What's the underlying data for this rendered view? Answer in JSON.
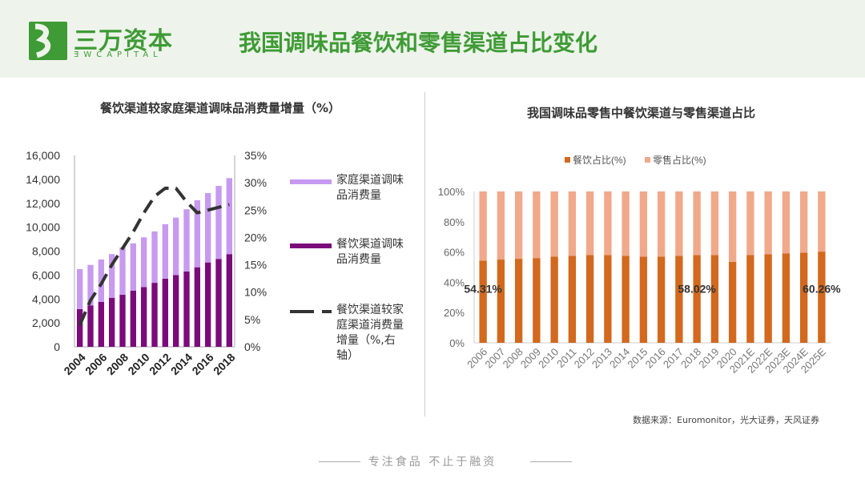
{
  "header": {
    "logo_cn": "三万资本",
    "logo_en": "ƎWCAPITAL",
    "title": "我国调味品餐饮和零售渠道占比变化",
    "brand_color": "#3f9b35"
  },
  "chart_data": [
    {
      "type": "bar",
      "stacked": true,
      "title": "餐饮渠道较家庭渠道调味品消费量增量（%）",
      "categories": [
        "2004",
        "2005",
        "2006",
        "2007",
        "2008",
        "2009",
        "2010",
        "2011",
        "2012",
        "2013",
        "2014",
        "2015",
        "2016",
        "2017",
        "2018"
      ],
      "x_tick_labels": [
        "2004",
        "2006",
        "2008",
        "2010",
        "2012",
        "2014",
        "2016",
        "2018"
      ],
      "ylim": [
        0,
        16000
      ],
      "y_ticks": [
        "0",
        "2,000",
        "4,000",
        "6,000",
        "8,000",
        "10,000",
        "12,000",
        "14,000",
        "16,000"
      ],
      "y2lim": [
        0,
        35
      ],
      "y2_ticks": [
        "0%",
        "5%",
        "10%",
        "15%",
        "20%",
        "25%",
        "30%",
        "35%"
      ],
      "series": [
        {
          "name": "餐饮渠道调味品消费量",
          "color": "#7b0a7b",
          "values": [
            3150,
            3450,
            3750,
            4100,
            4350,
            4700,
            5000,
            5350,
            5700,
            6000,
            6300,
            6650,
            7050,
            7350,
            7750
          ]
        },
        {
          "name": "家庭渠道调味品消费量",
          "color": "#c79af0",
          "values": [
            3350,
            3400,
            3550,
            3650,
            3950,
            3950,
            4150,
            4300,
            4550,
            4800,
            5200,
            5600,
            5800,
            6100,
            6350
          ]
        },
        {
          "name": "餐饮渠道较家庭渠道消费量增量（%,右轴）",
          "type": "line",
          "style": "dashed",
          "axis": "right",
          "color": "#333333",
          "values": [
            4,
            8.5,
            11.5,
            15,
            18,
            21,
            24.5,
            27.5,
            29,
            29,
            26.5,
            24.5,
            25,
            25.5,
            26
          ]
        }
      ],
      "legend": "right",
      "grid": false
    },
    {
      "type": "bar",
      "stacked": true,
      "title": "我国调味品零售中餐饮渠道与零售渠道占比",
      "categories": [
        "2006",
        "2007",
        "2008",
        "2009",
        "2010",
        "2011",
        "2012",
        "2013",
        "2014",
        "2015",
        "2016",
        "2017",
        "2018",
        "2019",
        "2020",
        "2021E",
        "2022E",
        "2023E",
        "2024E",
        "2025E"
      ],
      "ylim": [
        0,
        100
      ],
      "y_ticks": [
        "0%",
        "20%",
        "40%",
        "60%",
        "80%",
        "100%"
      ],
      "series": [
        {
          "name": "餐饮占比(%)",
          "color": "#d2691e",
          "values": [
            54.31,
            55,
            55.5,
            56,
            57,
            57.5,
            58,
            58,
            57.5,
            57,
            57,
            57.5,
            58.02,
            58,
            53.5,
            58,
            58.5,
            59,
            59.5,
            60.26
          ]
        },
        {
          "name": "零售占比(%)",
          "color": "#f0a98a",
          "values": [
            45.69,
            45,
            44.5,
            44,
            43,
            42.5,
            42,
            42,
            42.5,
            43,
            43,
            42.5,
            41.98,
            42,
            46.5,
            42,
            41.5,
            41,
            40.5,
            39.74
          ]
        }
      ],
      "data_labels": [
        {
          "category": "2006",
          "text": "54.31%"
        },
        {
          "category": "2018",
          "text": "58.02%"
        },
        {
          "category": "2025E",
          "text": "60.26%"
        }
      ],
      "legend": "top",
      "grid": false
    }
  ],
  "source": "数据来源：Euromonitor，光大证券，天风证券",
  "footer": "专注食品  不止于融资"
}
